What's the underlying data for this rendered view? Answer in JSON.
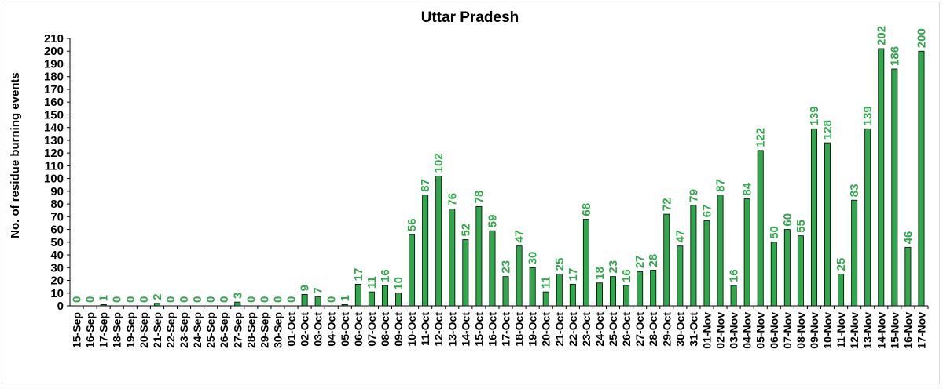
{
  "chart_data": {
    "type": "bar",
    "title": "Uttar Pradesh",
    "ylabel": "No. of residue burning events",
    "xlabel": "",
    "ylim": [
      0,
      210
    ],
    "ytick_step": 10,
    "grid": false,
    "legend": "none",
    "colors": {
      "bar_fill": "#2ea84a",
      "bar_stroke": "#000000",
      "data_label": "#2ea84a",
      "axis": "#000000",
      "text": "#000000"
    },
    "categories": [
      "15-Sep",
      "16-Sep",
      "17-Sep",
      "18-Sep",
      "19-Sep",
      "20-Sep",
      "21-Sep",
      "22-Sep",
      "23-Sep",
      "24-Sep",
      "25-Sep",
      "26-Sep",
      "27-Sep",
      "28-Sep",
      "29-Sep",
      "30-Sep",
      "01-Oct",
      "02-Oct",
      "03-Oct",
      "04-Oct",
      "05-Oct",
      "06-Oct",
      "07-Oct",
      "08-Oct",
      "09-Oct",
      "10-Oct",
      "11-Oct",
      "12-Oct",
      "13-Oct",
      "14-Oct",
      "15-Oct",
      "16-Oct",
      "17-Oct",
      "18-Oct",
      "19-Oct",
      "20-Oct",
      "21-Oct",
      "22-Oct",
      "23-Oct",
      "24-Oct",
      "25-Oct",
      "26-Oct",
      "27-Oct",
      "28-Oct",
      "29-Oct",
      "30-Oct",
      "31-Oct",
      "01-Nov",
      "02-Nov",
      "03-Nov",
      "04-Nov",
      "05-Nov",
      "06-Nov",
      "07-Nov",
      "08-Nov",
      "09-Nov",
      "10-Nov",
      "11-Nov",
      "12-Nov",
      "13-Nov",
      "14-Nov",
      "15-Nov",
      "16-Nov",
      "17-Nov"
    ],
    "values": [
      0,
      0,
      1,
      0,
      0,
      0,
      2,
      0,
      0,
      0,
      0,
      0,
      3,
      0,
      0,
      0,
      0,
      9,
      7,
      0,
      1,
      17,
      11,
      16,
      10,
      56,
      87,
      102,
      76,
      52,
      78,
      59,
      23,
      47,
      30,
      11,
      25,
      17,
      68,
      18,
      23,
      16,
      27,
      28,
      72,
      47,
      79,
      67,
      87,
      16,
      84,
      122,
      50,
      60,
      55,
      139,
      128,
      25,
      83,
      139,
      202,
      186,
      46,
      200
    ]
  }
}
